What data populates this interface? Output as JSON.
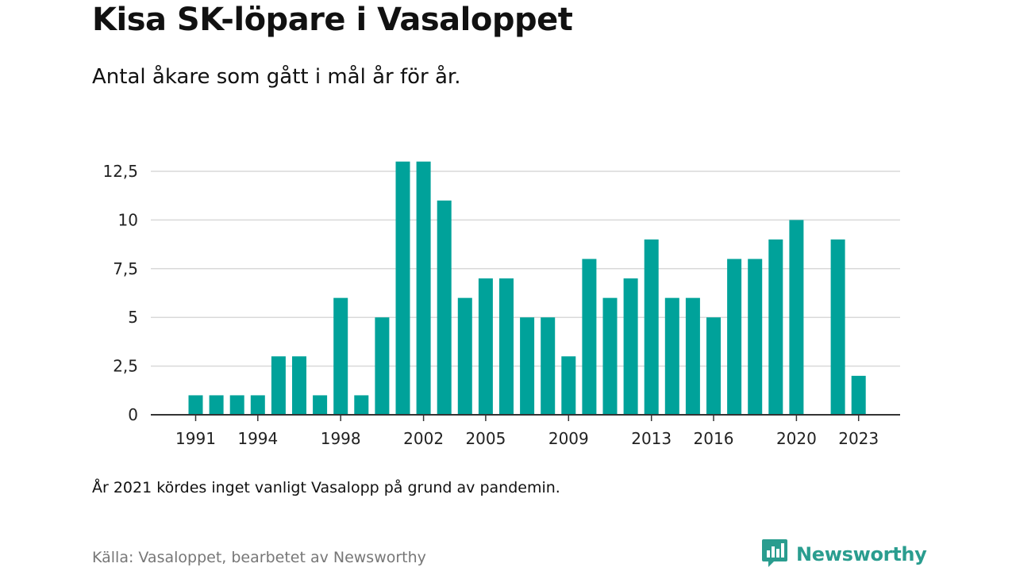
{
  "title": "Kisa SK-löpare i Vasaloppet",
  "subtitle": "Antal åkare som gått i mål år för år.",
  "note": "År 2021 kördes inget vanligt Vasalopp på grund av pandemin.",
  "source": "Källa: Vasaloppet, bearbetet av Newsworthy",
  "brand": {
    "name": "Newsworthy",
    "icon": "newsworthy-logo-icon",
    "color": "#2a9d8f"
  },
  "colors": {
    "bar": "#00a29a",
    "grid": "#d9d9d9",
    "axis": "#333333"
  },
  "chart_data": {
    "type": "bar",
    "title": "Kisa SK-löpare i Vasaloppet",
    "subtitle": "Antal åkare som gått i mål år för år.",
    "categories": [
      1991,
      1992,
      1993,
      1994,
      1995,
      1996,
      1997,
      1998,
      1999,
      2000,
      2001,
      2002,
      2003,
      2004,
      2005,
      2006,
      2007,
      2008,
      2009,
      2010,
      2011,
      2012,
      2013,
      2014,
      2015,
      2016,
      2017,
      2018,
      2019,
      2020,
      2021,
      2022,
      2023
    ],
    "values": [
      1,
      1,
      1,
      1,
      3,
      3,
      1,
      6,
      1,
      5,
      13,
      13,
      11,
      6,
      7,
      7,
      5,
      5,
      3,
      8,
      6,
      7,
      9,
      6,
      6,
      5,
      8,
      8,
      9,
      10,
      null,
      9,
      2
    ],
    "x_tick_labels": [
      "1991",
      "1994",
      "1998",
      "2002",
      "2005",
      "2009",
      "2013",
      "2016",
      "2020",
      "2023"
    ],
    "y_ticks": [
      0,
      2.5,
      5,
      7.5,
      10,
      12.5
    ],
    "y_tick_labels": [
      "0",
      "2,5",
      "5",
      "7,5",
      "10",
      "12,5"
    ],
    "ylim": [
      0,
      13
    ],
    "grid": true,
    "xlabel": "",
    "ylabel": ""
  }
}
